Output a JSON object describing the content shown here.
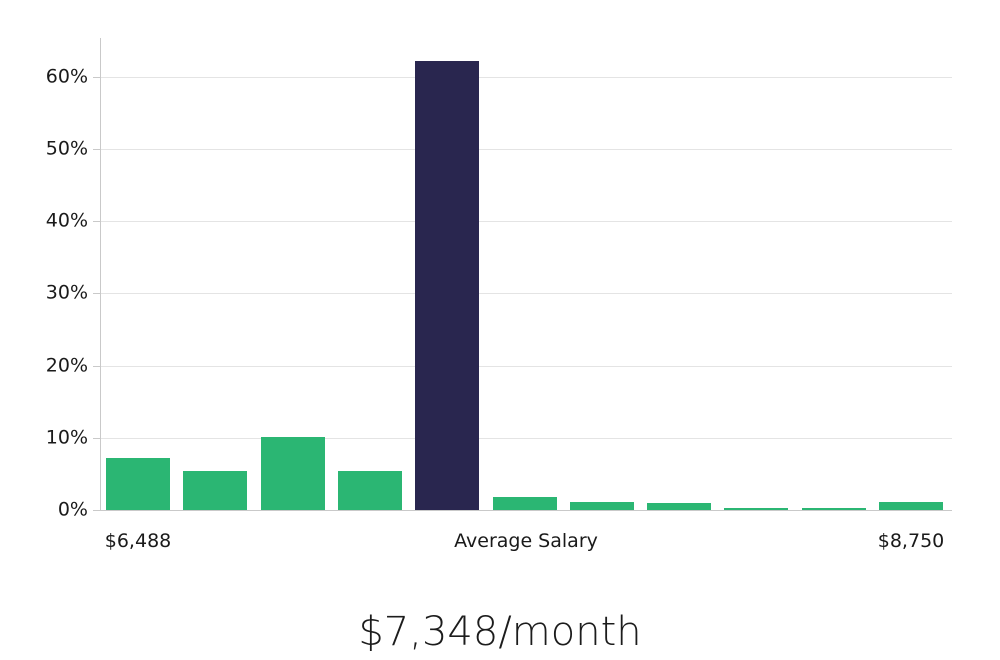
{
  "chart_data": {
    "type": "bar",
    "title": "$7,348/month",
    "xlabel": "",
    "ylabel": "",
    "ylim": [
      0,
      65
    ],
    "grid": true,
    "legend": "none",
    "y_ticks": [
      {
        "label": "0%",
        "value": 0
      },
      {
        "label": "10%",
        "value": 10
      },
      {
        "label": "20%",
        "value": 20
      },
      {
        "label": "30%",
        "value": 30
      },
      {
        "label": "40%",
        "value": 40
      },
      {
        "label": "50%",
        "value": 50
      },
      {
        "label": "60%",
        "value": 60
      }
    ],
    "bars": [
      {
        "value": 7.2,
        "color_key": "green"
      },
      {
        "value": 5.4,
        "color_key": "green"
      },
      {
        "value": 10.1,
        "color_key": "green"
      },
      {
        "value": 5.4,
        "color_key": "green"
      },
      {
        "value": 62.2,
        "color_key": "navy"
      },
      {
        "value": 1.8,
        "color_key": "green"
      },
      {
        "value": 1.1,
        "color_key": "green"
      },
      {
        "value": 1.0,
        "color_key": "green"
      },
      {
        "value": 0.3,
        "color_key": "green"
      },
      {
        "value": 0.3,
        "color_key": "green"
      },
      {
        "value": 1.1,
        "color_key": "green"
      }
    ],
    "highlight_bar_index": 4,
    "highlight_meaning": "Average Salary",
    "x_axis_labels": [
      {
        "text": "$6,488",
        "anchor_bar": 0
      },
      {
        "text": "Average Salary",
        "anchor": "axis-center"
      },
      {
        "text": "$8,750",
        "anchor_bar": 10
      }
    ],
    "colors": {
      "green": "#2bb673",
      "navy": "#29264f",
      "gridline": "#e4e4e4",
      "axis": "#c9c9c9",
      "text": "#1a1a1a"
    }
  }
}
